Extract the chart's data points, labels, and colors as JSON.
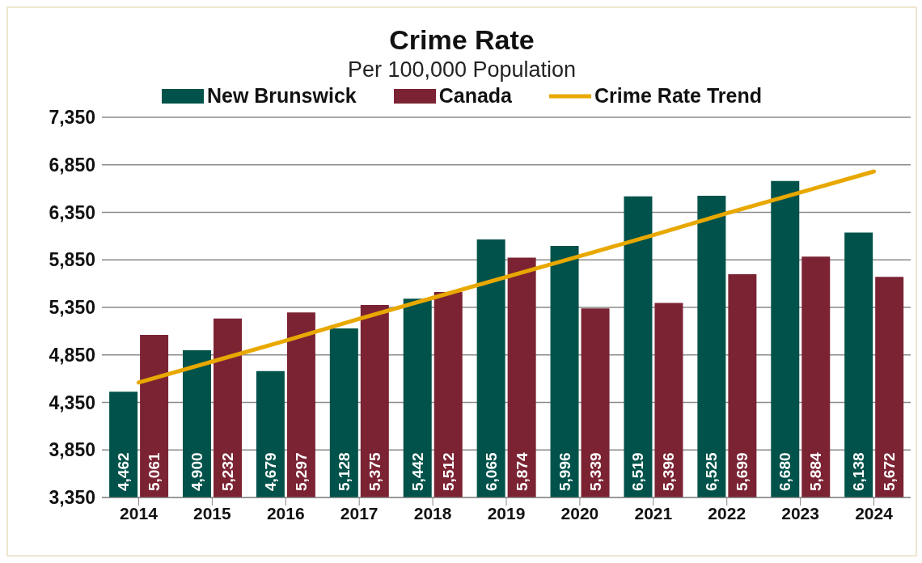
{
  "chart_data": {
    "type": "bar",
    "title": "Crime Rate",
    "subtitle": "Per 100,000 Population",
    "categories": [
      "2014",
      "2015",
      "2016",
      "2017",
      "2018",
      "2019",
      "2020",
      "2021",
      "2022",
      "2023",
      "2024"
    ],
    "series": [
      {
        "name": "New Brunswick",
        "color": "#00524a",
        "values": [
          4462,
          4900,
          4679,
          5128,
          5442,
          6065,
          5996,
          6519,
          6525,
          6680,
          6138
        ],
        "value_labels": [
          "4,462",
          "4,900",
          "4,679",
          "5,128",
          "5,442",
          "6,065",
          "5,996",
          "6,519",
          "6,525",
          "6,680",
          "6,138"
        ]
      },
      {
        "name": "Canada",
        "color": "#7b2333",
        "values": [
          5061,
          5232,
          5297,
          5375,
          5512,
          5874,
          5339,
          5396,
          5699,
          5884,
          5672
        ],
        "value_labels": [
          "5,061",
          "5,232",
          "5,297",
          "5,375",
          "5,512",
          "5,874",
          "5,339",
          "5,396",
          "5,699",
          "5,884",
          "5,672"
        ]
      },
      {
        "name": "Crime Rate Trend",
        "type": "line",
        "color": "#e8a800",
        "values": [
          4560,
          4780,
          5000,
          5230,
          5450,
          5670,
          5890,
          6110,
          6340,
          6560,
          6780
        ]
      }
    ],
    "ylim": [
      3350,
      7350
    ],
    "yticks": [
      {
        "value": 3350,
        "label": "3,350"
      },
      {
        "value": 3850,
        "label": "3,850"
      },
      {
        "value": 4350,
        "label": "4,350"
      },
      {
        "value": 4850,
        "label": "4,850"
      },
      {
        "value": 5350,
        "label": "5,350"
      },
      {
        "value": 5850,
        "label": "5,850"
      },
      {
        "value": 6350,
        "label": "6,350"
      },
      {
        "value": 6850,
        "label": "6,850"
      },
      {
        "value": 7350,
        "label": "7,350"
      }
    ],
    "grid": "y",
    "legend": "top",
    "marker": "none",
    "line_style": "solid"
  }
}
